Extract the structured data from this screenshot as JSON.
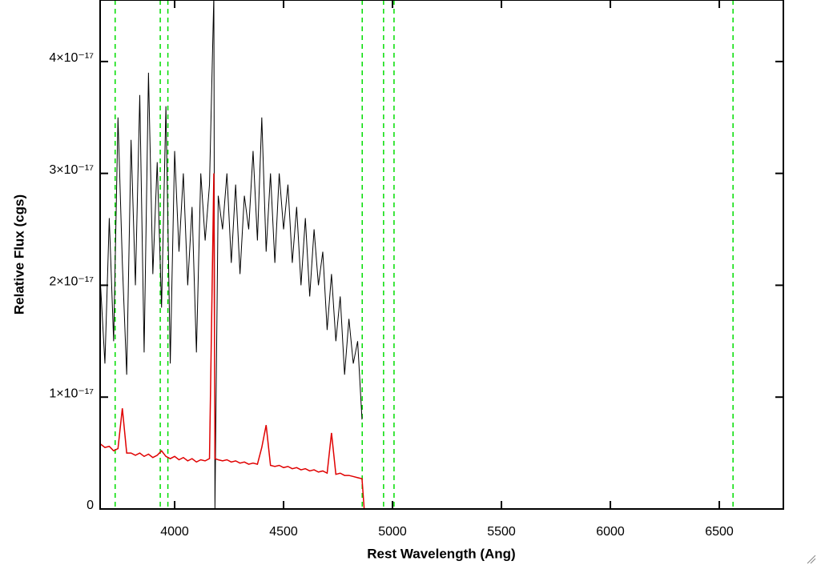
{
  "chart_data": {
    "type": "line",
    "xlabel": "Rest Wavelength (Ang)",
    "ylabel": "Relative Flux (cgs)",
    "x": [
      3660,
      3680,
      3700,
      3720,
      3740,
      3760,
      3780,
      3800,
      3820,
      3840,
      3860,
      3880,
      3900,
      3920,
      3940,
      3960,
      3980,
      4000,
      4020,
      4040,
      4060,
      4080,
      4100,
      4120,
      4140,
      4160,
      4180,
      4185,
      4200,
      4220,
      4240,
      4260,
      4280,
      4300,
      4320,
      4340,
      4360,
      4380,
      4400,
      4420,
      4440,
      4460,
      4480,
      4500,
      4520,
      4540,
      4560,
      4580,
      4600,
      4620,
      4640,
      4660,
      4680,
      4700,
      4720,
      4740,
      4760,
      4780,
      4800,
      4820,
      4840,
      4860,
      4870,
      6790
    ],
    "series": [
      {
        "color": "#000000",
        "values": [
          2e-17,
          1.3e-17,
          2.6e-17,
          1.5e-17,
          3.5e-17,
          2.2e-17,
          1.2e-17,
          3.3e-17,
          2e-17,
          3.7e-17,
          1.4e-17,
          3.9e-17,
          2.1e-17,
          3.1e-17,
          1.8e-17,
          3.6e-17,
          1.3e-17,
          3.2e-17,
          2.3e-17,
          3e-17,
          2e-17,
          2.7e-17,
          1.4e-17,
          3e-17,
          2.4e-17,
          2.9e-17,
          4.6e-17,
          0,
          2.8e-17,
          2.5e-17,
          3e-17,
          2.2e-17,
          2.9e-17,
          2.1e-17,
          2.8e-17,
          2.5e-17,
          3.2e-17,
          2.4e-17,
          3.5e-17,
          2.3e-17,
          3e-17,
          2.2e-17,
          3e-17,
          2.5e-17,
          2.9e-17,
          2.2e-17,
          2.7e-17,
          2e-17,
          2.6e-17,
          1.9e-17,
          2.5e-17,
          2e-17,
          2.3e-17,
          1.6e-17,
          2.1e-17,
          1.5e-17,
          1.9e-17,
          1.2e-17,
          1.7e-17,
          1.3e-17,
          1.5e-17,
          8e-18,
          null,
          null
        ]
      },
      {
        "color": "#e00000",
        "values": [
          5.8e-18,
          5.5e-18,
          5.6e-18,
          5.2e-18,
          5.4e-18,
          9e-18,
          5e-18,
          5e-18,
          4.8e-18,
          5e-18,
          4.7e-18,
          4.9e-18,
          4.6e-18,
          4.8e-18,
          5.2e-18,
          4.7e-18,
          4.5e-18,
          4.7e-18,
          4.4e-18,
          4.6e-18,
          4.3e-18,
          4.5e-18,
          4.2e-18,
          4.4e-18,
          4.3e-18,
          4.5e-18,
          3e-17,
          4.5e-18,
          4.4e-18,
          4.3e-18,
          4.4e-18,
          4.2e-18,
          4.3e-18,
          4.1e-18,
          4.2e-18,
          4e-18,
          4.1e-18,
          4e-18,
          5.5e-18,
          7.5e-18,
          3.9e-18,
          3.8e-18,
          3.9e-18,
          3.7e-18,
          3.8e-18,
          3.6e-18,
          3.7e-18,
          3.5e-18,
          3.6e-18,
          3.4e-18,
          3.5e-18,
          3.3e-18,
          3.4e-18,
          3.2e-18,
          6.8e-18,
          3.1e-18,
          3.2e-18,
          3e-18,
          3e-18,
          2.9e-18,
          2.8e-18,
          2.7e-18,
          0,
          0
        ]
      }
    ],
    "lines": [
      3727,
      3934,
      3969,
      4861,
      4959,
      5007,
      6563
    ],
    "lines_color": "#00dd00",
    "xlim": [
      3658,
      6794
    ],
    "ylim": [
      0,
      4.55e-17
    ],
    "xticks": [
      4000,
      4500,
      5000,
      5500,
      6000,
      6500
    ],
    "yticks": [
      0,
      {
        "value": 1e-17,
        "label": "1×10⁻¹⁷"
      },
      {
        "value": 2e-17,
        "label": "2×10⁻¹⁷"
      },
      {
        "value": 3e-17,
        "label": "3×10⁻¹⁷"
      },
      {
        "value": 4e-17,
        "label": "4×10⁻¹⁷"
      }
    ]
  }
}
